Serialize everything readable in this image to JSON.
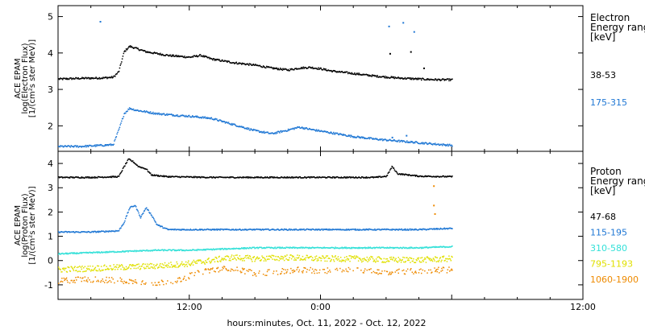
{
  "colors": {
    "black": "#000000",
    "blue": "#1f77d4",
    "cyan": "#33e0d8",
    "yellow": "#e0e000",
    "orange": "#ee8a00"
  },
  "x_axis": {
    "label": "hours:minutes, Oct. 11, 2022 - Oct. 12, 2022",
    "range_hours": [
      0,
      48
    ],
    "ticks": [
      {
        "hours": 12,
        "label": "12:00"
      },
      {
        "hours": 24,
        "label": "0:00"
      },
      {
        "hours": 48,
        "label": "12:00"
      }
    ]
  },
  "chart_data": [
    {
      "type": "scatter",
      "panel": "electron",
      "ylabel_lines": [
        "ACE EPAM",
        "log(Electron Flux)",
        "[1/(cm²s ster MeV)]"
      ],
      "ylim": [
        1.3,
        5.3
      ],
      "yticks": [
        2,
        3,
        4,
        5
      ],
      "legend_title": [
        "Electron",
        "Energy ranges",
        "[keV]"
      ],
      "series": [
        {
          "name": "38-53",
          "color_key": "black",
          "points": [
            [
              0,
              3.3
            ],
            [
              2,
              3.32
            ],
            [
              4,
              3.33
            ],
            [
              5,
              3.35
            ],
            [
              5.5,
              3.5
            ],
            [
              6,
              4.05
            ],
            [
              6.5,
              4.2
            ],
            [
              7,
              4.15
            ],
            [
              8,
              4.05
            ],
            [
              10,
              3.95
            ],
            [
              12,
              3.9
            ],
            [
              13,
              3.95
            ],
            [
              14,
              3.85
            ],
            [
              16,
              3.75
            ],
            [
              18,
              3.68
            ],
            [
              19.5,
              3.6
            ],
            [
              21,
              3.55
            ],
            [
              22,
              3.6
            ],
            [
              23,
              3.62
            ],
            [
              24,
              3.58
            ],
            [
              25,
              3.52
            ],
            [
              27,
              3.45
            ],
            [
              29,
              3.38
            ],
            [
              31,
              3.33
            ],
            [
              33,
              3.3
            ],
            [
              34.8,
              3.28
            ],
            [
              36,
              3.28
            ]
          ],
          "outliers": [
            [
              30.3,
              4.0
            ],
            [
              32.2,
              4.05
            ],
            [
              33.4,
              3.6
            ]
          ]
        },
        {
          "name": "175-315",
          "color_key": "blue",
          "points": [
            [
              0,
              1.45
            ],
            [
              2,
              1.45
            ],
            [
              4,
              1.48
            ],
            [
              5,
              1.5
            ],
            [
              5.5,
              1.9
            ],
            [
              6,
              2.35
            ],
            [
              6.5,
              2.5
            ],
            [
              7,
              2.45
            ],
            [
              9,
              2.35
            ],
            [
              11,
              2.3
            ],
            [
              12,
              2.28
            ],
            [
              14,
              2.22
            ],
            [
              16,
              2.05
            ],
            [
              18,
              1.88
            ],
            [
              19.5,
              1.8
            ],
            [
              21,
              1.9
            ],
            [
              22,
              1.98
            ],
            [
              23,
              1.92
            ],
            [
              25,
              1.82
            ],
            [
              27,
              1.72
            ],
            [
              29,
              1.65
            ],
            [
              31,
              1.6
            ],
            [
              33,
              1.55
            ],
            [
              35,
              1.5
            ],
            [
              36,
              1.48
            ]
          ],
          "outliers": [
            [
              30.5,
              1.7
            ],
            [
              31.8,
              1.75
            ]
          ]
        }
      ],
      "sparse_points": [
        [
          3.8,
          4.88
        ],
        [
          31.5,
          4.85
        ],
        [
          32.5,
          4.6
        ],
        [
          30.2,
          4.75
        ]
      ]
    },
    {
      "type": "scatter",
      "panel": "proton",
      "ylabel_lines": [
        "ACE EPAM",
        "log(Proton Flux)",
        "[1/(cm²s ster MeV)]"
      ],
      "ylim": [
        -1.6,
        4.5
      ],
      "yticks": [
        -1,
        0,
        1,
        2,
        3,
        4
      ],
      "legend_title": [
        "Proton",
        "Energy ranges",
        "[keV]"
      ],
      "series": [
        {
          "name": "47-68",
          "color_key": "black",
          "points": [
            [
              0,
              3.45
            ],
            [
              3,
              3.45
            ],
            [
              5.5,
              3.48
            ],
            [
              6,
              3.9
            ],
            [
              6.4,
              4.2
            ],
            [
              6.8,
              4.1
            ],
            [
              7.3,
              3.9
            ],
            [
              8,
              3.8
            ],
            [
              8.5,
              3.55
            ],
            [
              10,
              3.48
            ],
            [
              14,
              3.45
            ],
            [
              18,
              3.45
            ],
            [
              22,
              3.45
            ],
            [
              26,
              3.45
            ],
            [
              29,
              3.45
            ],
            [
              30,
              3.5
            ],
            [
              30.5,
              3.9
            ],
            [
              31,
              3.6
            ],
            [
              33,
              3.5
            ],
            [
              36,
              3.48
            ]
          ]
        },
        {
          "name": "115-195",
          "color_key": "blue",
          "points": [
            [
              0,
              1.2
            ],
            [
              3,
              1.2
            ],
            [
              5.5,
              1.25
            ],
            [
              6,
              1.6
            ],
            [
              6.5,
              2.2
            ],
            [
              7,
              2.3
            ],
            [
              7.5,
              1.8
            ],
            [
              8,
              2.2
            ],
            [
              8.5,
              1.9
            ],
            [
              9,
              1.5
            ],
            [
              10,
              1.3
            ],
            [
              14,
              1.3
            ],
            [
              18,
              1.3
            ],
            [
              22,
              1.3
            ],
            [
              26,
              1.3
            ],
            [
              30,
              1.3
            ],
            [
              33,
              1.3
            ],
            [
              36,
              1.35
            ]
          ]
        },
        {
          "name": "310-580",
          "color_key": "cyan",
          "points": [
            [
              0,
              0.3
            ],
            [
              3,
              0.35
            ],
            [
              6,
              0.4
            ],
            [
              9,
              0.45
            ],
            [
              12,
              0.45
            ],
            [
              15,
              0.5
            ],
            [
              18,
              0.55
            ],
            [
              21,
              0.55
            ],
            [
              24,
              0.55
            ],
            [
              27,
              0.55
            ],
            [
              30,
              0.55
            ],
            [
              33,
              0.55
            ],
            [
              36,
              0.6
            ]
          ]
        },
        {
          "name": "795-1193",
          "color_key": "yellow",
          "points": [
            [
              0,
              -0.35
            ],
            [
              3,
              -0.3
            ],
            [
              6,
              -0.25
            ],
            [
              9,
              -0.2
            ],
            [
              12,
              -0.1
            ],
            [
              15,
              0.1
            ],
            [
              16,
              0.15
            ],
            [
              18,
              0.1
            ],
            [
              21,
              0.15
            ],
            [
              24,
              0.1
            ],
            [
              27,
              0.1
            ],
            [
              30,
              0.05
            ],
            [
              33,
              0.05
            ],
            [
              36,
              0.1
            ]
          ]
        },
        {
          "name": "1060-1900",
          "color_key": "orange",
          "points": [
            [
              0,
              -0.8
            ],
            [
              3,
              -0.75
            ],
            [
              6,
              -0.8
            ],
            [
              9,
              -0.9
            ],
            [
              11,
              -0.8
            ],
            [
              12,
              -0.6
            ],
            [
              14,
              -0.35
            ],
            [
              16,
              -0.3
            ],
            [
              18,
              -0.5
            ],
            [
              20,
              -0.45
            ],
            [
              22,
              -0.35
            ],
            [
              24,
              -0.4
            ],
            [
              27,
              -0.35
            ],
            [
              30,
              -0.45
            ],
            [
              33,
              -0.4
            ],
            [
              36,
              -0.35
            ]
          ]
        }
      ],
      "sparse_points": [
        [
          34.3,
          3.1
        ],
        [
          34.3,
          2.3
        ],
        [
          34.4,
          1.95
        ]
      ]
    }
  ]
}
